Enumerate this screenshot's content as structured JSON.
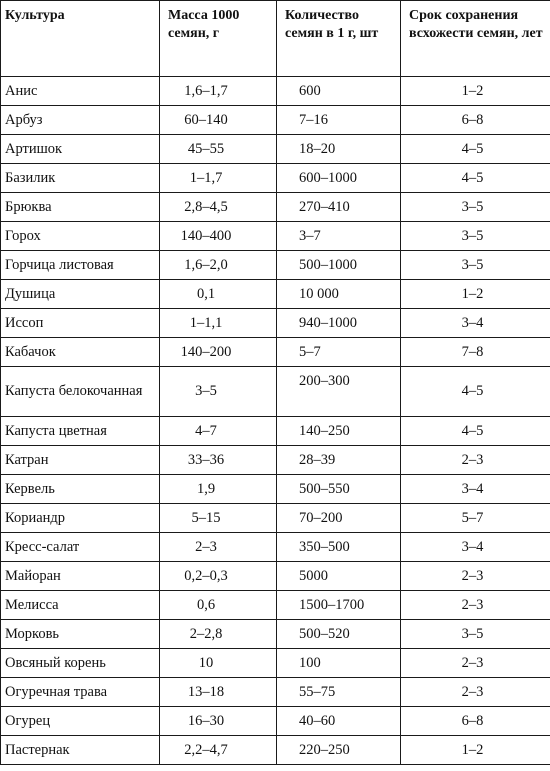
{
  "table": {
    "headers": [
      "Культура",
      "Масса 1000 семян, г",
      "Количество семян в 1 г, шт",
      "Срок сохранения всхожести семян, лет"
    ],
    "rows": [
      [
        "Анис",
        "1,6–1,7",
        "600",
        "1–2"
      ],
      [
        "Арбуз",
        "60–140",
        "7–16",
        "6–8"
      ],
      [
        "Артишок",
        "45–55",
        "18–20",
        "4–5"
      ],
      [
        "Базилик",
        "1–1,7",
        "600–1000",
        "4–5"
      ],
      [
        "Брюква",
        "2,8–4,5",
        "270–410",
        "3–5"
      ],
      [
        "Горох",
        "140–400",
        "3–7",
        "3–5"
      ],
      [
        "Горчица листовая",
        "1,6–2,0",
        "500–1000",
        "3–5"
      ],
      [
        "Душица",
        "0,1",
        "10 000",
        "1–2"
      ],
      [
        "Иссоп",
        "1–1,1",
        "940–1000",
        "3–4"
      ],
      [
        "Кабачок",
        "140–200",
        "5–7",
        "7–8"
      ],
      [
        "Капуста белокочанная",
        "3–5",
        "200–300",
        "4–5"
      ],
      [
        "Капуста цветная",
        "4–7",
        "140–250",
        "4–5"
      ],
      [
        "Катран",
        "33–36",
        "28–39",
        "2–3"
      ],
      [
        "Кервель",
        "1,9",
        "500–550",
        "3–4"
      ],
      [
        "Кориандр",
        "5–15",
        "70–200",
        "5–7"
      ],
      [
        "Кресс-салат",
        "2–3",
        "350–500",
        "3–4"
      ],
      [
        "Майоран",
        "0,2–0,3",
        "5000",
        "2–3"
      ],
      [
        "Мелисса",
        "0,6",
        "1500–1700",
        "2–3"
      ],
      [
        "Морковь",
        "2–2,8",
        "500–520",
        "3–5"
      ],
      [
        "Овсяный корень",
        "10",
        "100",
        "2–3"
      ],
      [
        "Огуречная трава",
        "13–18",
        "55–75",
        "2–3"
      ],
      [
        "Огурец",
        "16–30",
        "40–60",
        "6–8"
      ],
      [
        "Пастернак",
        "2,2–4,7",
        "220–250",
        "1–2"
      ]
    ]
  }
}
